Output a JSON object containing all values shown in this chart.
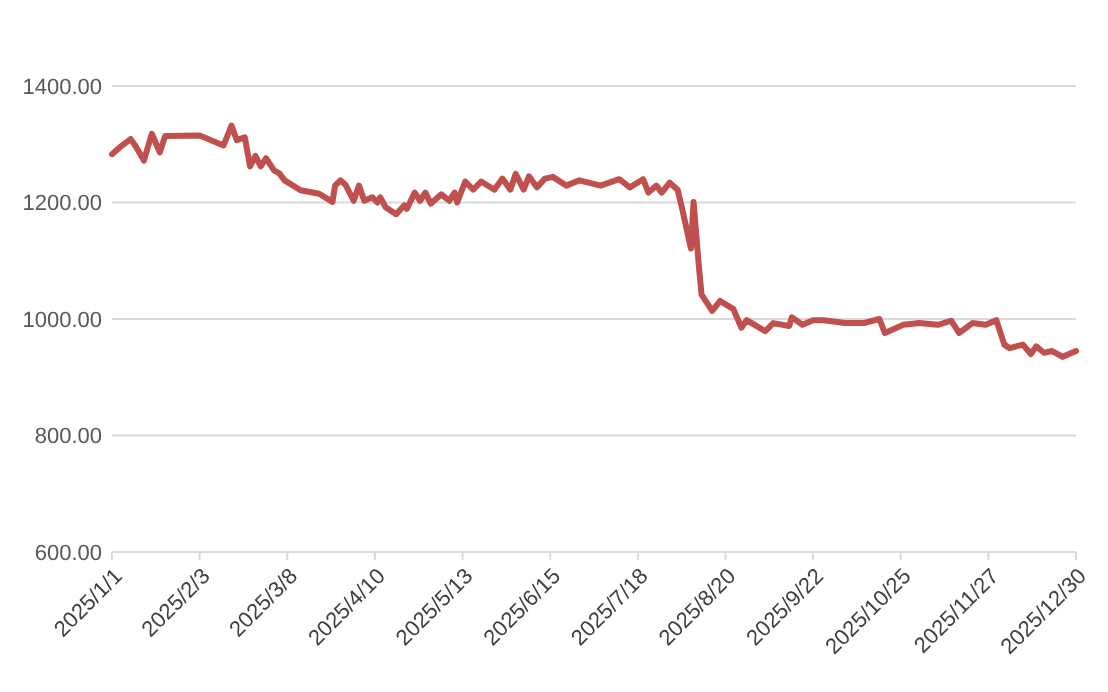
{
  "chart_data": {
    "type": "line",
    "x": [
      "2025-01-01",
      "2025-01-04",
      "2025-01-08",
      "2025-01-10",
      "2025-01-13",
      "2025-01-16",
      "2025-01-19",
      "2025-01-21",
      "2025-02-03",
      "2025-02-12",
      "2025-02-15",
      "2025-02-17",
      "2025-02-20",
      "2025-02-22",
      "2025-02-24",
      "2025-02-26",
      "2025-02-28",
      "2025-03-03",
      "2025-03-05",
      "2025-03-07",
      "2025-03-13",
      "2025-03-20",
      "2025-03-25",
      "2025-03-26",
      "2025-03-28",
      "2025-03-30",
      "2025-04-02",
      "2025-04-04",
      "2025-04-06",
      "2025-04-09",
      "2025-04-11",
      "2025-04-12",
      "2025-04-14",
      "2025-04-18",
      "2025-04-21",
      "2025-04-22",
      "2025-04-25",
      "2025-04-27",
      "2025-04-29",
      "2025-05-01",
      "2025-05-05",
      "2025-05-08",
      "2025-05-10",
      "2025-05-11",
      "2025-05-14",
      "2025-05-17",
      "2025-05-20",
      "2025-05-25",
      "2025-05-28",
      "2025-05-31",
      "2025-06-02",
      "2025-06-05",
      "2025-06-07",
      "2025-06-10",
      "2025-06-13",
      "2025-06-16",
      "2025-06-21",
      "2025-06-26",
      "2025-07-04",
      "2025-07-11",
      "2025-07-15",
      "2025-07-20",
      "2025-07-22",
      "2025-07-25",
      "2025-07-27",
      "2025-07-30",
      "2025-08-02",
      "2025-08-04",
      "2025-08-07",
      "2025-08-08",
      "2025-08-10",
      "2025-08-11",
      "2025-08-15",
      "2025-08-18",
      "2025-08-23",
      "2025-08-26",
      "2025-08-28",
      "2025-09-04",
      "2025-09-07",
      "2025-09-13",
      "2025-09-14",
      "2025-09-18",
      "2025-09-22",
      "2025-09-26",
      "2025-10-04",
      "2025-10-11",
      "2025-10-17",
      "2025-10-19",
      "2025-10-26",
      "2025-11-01",
      "2025-11-08",
      "2025-11-13",
      "2025-11-16",
      "2025-11-21",
      "2025-11-26",
      "2025-11-30",
      "2025-12-03",
      "2025-12-05",
      "2025-12-10",
      "2025-12-13",
      "2025-12-15",
      "2025-12-18",
      "2025-12-21",
      "2025-12-25",
      "2025-12-30"
    ],
    "series": [
      {
        "color": "#c0504d",
        "values": [
          1283,
          1295,
          1309,
          1296,
          1272,
          1318,
          1286,
          1314,
          1315,
          1298,
          1332,
          1307,
          1312,
          1262,
          1280,
          1262,
          1276,
          1255,
          1250,
          1238,
          1221,
          1215,
          1201,
          1229,
          1238,
          1230,
          1203,
          1229,
          1203,
          1209,
          1200,
          1209,
          1192,
          1180,
          1195,
          1189,
          1217,
          1203,
          1217,
          1198,
          1214,
          1203,
          1217,
          1200,
          1236,
          1222,
          1236,
          1222,
          1241,
          1222,
          1249,
          1222,
          1245,
          1226,
          1241,
          1244,
          1229,
          1238,
          1229,
          1240,
          1226,
          1240,
          1217,
          1229,
          1217,
          1234,
          1222,
          1183,
          1121,
          1201,
          1090,
          1042,
          1014,
          1031,
          1017,
          985,
          998,
          979,
          993,
          988,
          1003,
          990,
          998,
          998,
          993,
          993,
          1000,
          976,
          990,
          993,
          990,
          997,
          976,
          993,
          990,
          998,
          956,
          950,
          956,
          940,
          953,
          942,
          945,
          935,
          945
        ]
      }
    ],
    "xlim": [
      "2025-01-01",
      "2025-12-30"
    ],
    "xticks": [
      {
        "value": "2025-01-01",
        "label": "2025/1/1"
      },
      {
        "value": "2025-02-03",
        "label": "2025/2/3"
      },
      {
        "value": "2025-03-08",
        "label": "2025/3/8"
      },
      {
        "value": "2025-04-10",
        "label": "2025/4/10"
      },
      {
        "value": "2025-05-13",
        "label": "2025/5/13"
      },
      {
        "value": "2025-06-15",
        "label": "2025/6/15"
      },
      {
        "value": "2025-07-18",
        "label": "2025/7/18"
      },
      {
        "value": "2025-08-20",
        "label": "2025/8/20"
      },
      {
        "value": "2025-09-22",
        "label": "2025/9/22"
      },
      {
        "value": "2025-10-25",
        "label": "2025/10/25"
      },
      {
        "value": "2025-11-27",
        "label": "2025/11/27"
      },
      {
        "value": "2025-12-30",
        "label": "2025/12/30"
      }
    ],
    "ylim": [
      600,
      1400
    ],
    "yticks": [
      {
        "value": 600,
        "label": "600.00"
      },
      {
        "value": 800,
        "label": "800.00"
      },
      {
        "value": 1000,
        "label": "1000.00"
      },
      {
        "value": 1200,
        "label": "1200.00"
      },
      {
        "value": 1400,
        "label": "1400.00"
      }
    ],
    "grid": "y",
    "marker": "none",
    "line_style": "solid"
  }
}
